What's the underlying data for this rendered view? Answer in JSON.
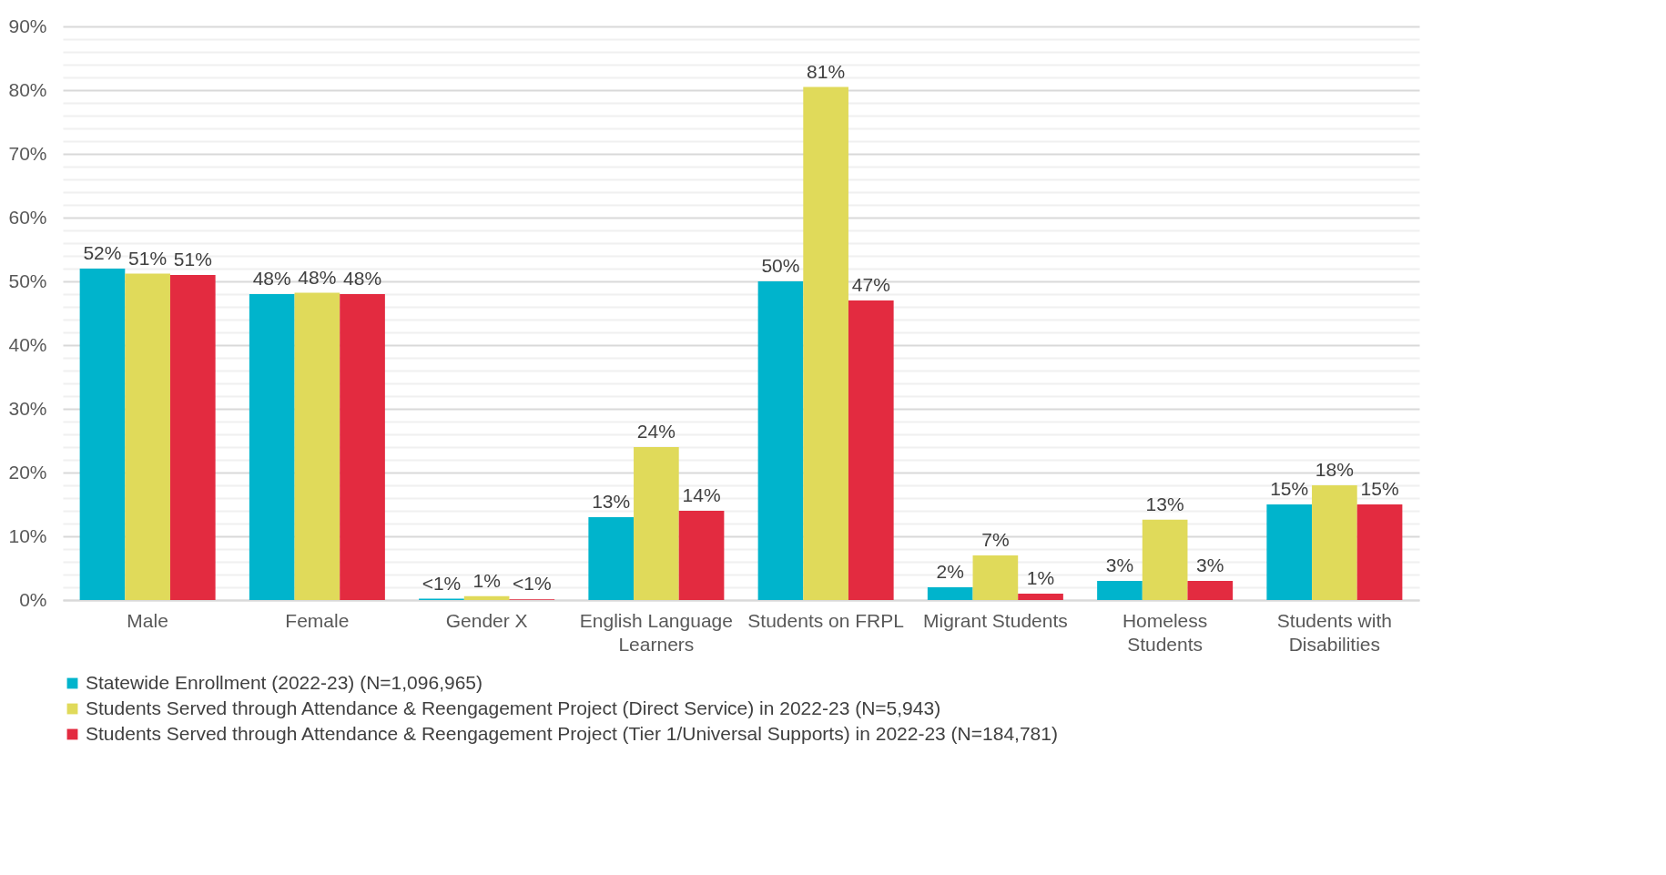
{
  "chart_data": {
    "type": "bar",
    "categories": [
      "Male",
      "Female",
      "Gender X",
      "English Language Learners",
      "Students on FRPL",
      "Migrant Students",
      "Homeless Students",
      "Students with Disabilities"
    ],
    "series": [
      {
        "name": "Statewide Enrollment (2022-23) (N=1,096,965)",
        "color": "#00b4cc",
        "values": [
          52,
          48,
          0.2,
          13,
          50,
          2,
          3,
          15
        ],
        "value_labels": [
          "52%",
          "48%",
          "<1%",
          "13%",
          "50%",
          "2%",
          "3%",
          "15%"
        ]
      },
      {
        "name": "Students Served through Attendance & Reengagement Project (Direct Service) in 2022-23 (N=5,943)",
        "color": "#e0da5a",
        "values": [
          51.2,
          48.2,
          0.6,
          24,
          80.5,
          7,
          12.6,
          18
        ],
        "value_labels": [
          "51%",
          "48%",
          "1%",
          "24%",
          "81%",
          "7%",
          "13%",
          "18%"
        ]
      },
      {
        "name": "Students Served through Attendance & Reengagement Project (Tier 1/Universal Supports) in 2022-23 (N=184,781)",
        "color": "#e32b40",
        "values": [
          51,
          48,
          0.1,
          14,
          47,
          1,
          3,
          15
        ],
        "value_labels": [
          "51%",
          "48%",
          "<1%",
          "14%",
          "47%",
          "1%",
          "3%",
          "15%"
        ]
      }
    ],
    "ylim": [
      0,
      90
    ],
    "yticks": [
      {
        "value": 0,
        "label": "0%"
      },
      {
        "value": 2,
        "label": null
      },
      {
        "value": 4,
        "label": null
      },
      {
        "value": 6,
        "label": null
      },
      {
        "value": 8,
        "label": null
      },
      {
        "value": 10,
        "label": "10%"
      },
      {
        "value": 12,
        "label": null
      },
      {
        "value": 14,
        "label": null
      },
      {
        "value": 16,
        "label": null
      },
      {
        "value": 18,
        "label": null
      },
      {
        "value": 20,
        "label": "20%"
      },
      {
        "value": 22,
        "label": null
      },
      {
        "value": 24,
        "label": null
      },
      {
        "value": 26,
        "label": null
      },
      {
        "value": 28,
        "label": null
      },
      {
        "value": 30,
        "label": "30%"
      },
      {
        "value": 32,
        "label": null
      },
      {
        "value": 34,
        "label": null
      },
      {
        "value": 36,
        "label": null
      },
      {
        "value": 38,
        "label": null
      },
      {
        "value": 40,
        "label": "40%"
      },
      {
        "value": 42,
        "label": null
      },
      {
        "value": 44,
        "label": null
      },
      {
        "value": 46,
        "label": null
      },
      {
        "value": 48,
        "label": null
      },
      {
        "value": 50,
        "label": "50%"
      },
      {
        "value": 52,
        "label": null
      },
      {
        "value": 54,
        "label": null
      },
      {
        "value": 56,
        "label": null
      },
      {
        "value": 58,
        "label": null
      },
      {
        "value": 60,
        "label": "60%"
      },
      {
        "value": 62,
        "label": null
      },
      {
        "value": 64,
        "label": null
      },
      {
        "value": 66,
        "label": null
      },
      {
        "value": 68,
        "label": null
      },
      {
        "value": 70,
        "label": "70%"
      },
      {
        "value": 72,
        "label": null
      },
      {
        "value": 74,
        "label": null
      },
      {
        "value": 76,
        "label": null
      },
      {
        "value": 78,
        "label": null
      },
      {
        "value": 80,
        "label": "80%"
      },
      {
        "value": 82,
        "label": null
      },
      {
        "value": 84,
        "label": null
      },
      {
        "value": 86,
        "label": null
      },
      {
        "value": 88,
        "label": null
      },
      {
        "value": 90,
        "label": "90%"
      }
    ],
    "grid": "y",
    "legend": "bottom"
  }
}
